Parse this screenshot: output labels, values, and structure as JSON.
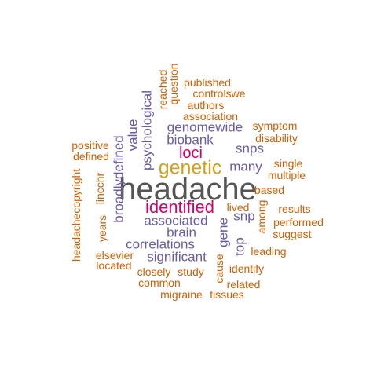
{
  "colors": {
    "gray": "#555555",
    "gold": "#d4a017",
    "magenta": "#d6006e",
    "purple": "#6a5aa8",
    "orange": "#d55e00"
  },
  "words": [
    {
      "text": "headache",
      "color": "gray"
    },
    {
      "text": "genetic",
      "color": "gold"
    },
    {
      "text": "identified",
      "color": "magenta"
    },
    {
      "text": "loci",
      "color": "magenta"
    },
    {
      "text": "associated",
      "color": "purple"
    },
    {
      "text": "brain",
      "color": "purple"
    },
    {
      "text": "correlations",
      "color": "purple"
    },
    {
      "text": "significant",
      "color": "purple"
    },
    {
      "text": "many",
      "color": "purple"
    },
    {
      "text": "snps",
      "color": "purple"
    },
    {
      "text": "snp",
      "color": "purple"
    },
    {
      "text": "genomewide",
      "color": "purple"
    },
    {
      "text": "biobank",
      "color": "purple"
    },
    {
      "text": "psychological",
      "color": "purple"
    },
    {
      "text": "value",
      "color": "purple"
    },
    {
      "text": "broadlydefined",
      "color": "purple"
    },
    {
      "text": "gene",
      "color": "purple"
    },
    {
      "text": "top",
      "color": "purple"
    },
    {
      "text": "published",
      "color": "orange"
    },
    {
      "text": "reached",
      "color": "orange"
    },
    {
      "text": "question",
      "color": "orange"
    },
    {
      "text": "controlswe",
      "color": "orange"
    },
    {
      "text": "authors",
      "color": "orange"
    },
    {
      "text": "association",
      "color": "orange"
    },
    {
      "text": "symptom",
      "color": "orange"
    },
    {
      "text": "disability",
      "color": "orange"
    },
    {
      "text": "positive",
      "color": "orange"
    },
    {
      "text": "defined",
      "color": "orange"
    },
    {
      "text": "single",
      "color": "orange"
    },
    {
      "text": "multiple",
      "color": "orange"
    },
    {
      "text": "lincchr",
      "color": "orange"
    },
    {
      "text": "based",
      "color": "orange"
    },
    {
      "text": "lived",
      "color": "orange"
    },
    {
      "text": "results",
      "color": "orange"
    },
    {
      "text": "among",
      "color": "orange"
    },
    {
      "text": "performed",
      "color": "orange"
    },
    {
      "text": "suggest",
      "color": "orange"
    },
    {
      "text": "headachecopyright",
      "color": "orange"
    },
    {
      "text": "years",
      "color": "orange"
    },
    {
      "text": "elsevier",
      "color": "orange"
    },
    {
      "text": "located",
      "color": "orange"
    },
    {
      "text": "leading",
      "color": "orange"
    },
    {
      "text": "cause",
      "color": "orange"
    },
    {
      "text": "identify",
      "color": "orange"
    },
    {
      "text": "closely",
      "color": "orange"
    },
    {
      "text": "study",
      "color": "orange"
    },
    {
      "text": "common",
      "color": "orange"
    },
    {
      "text": "related",
      "color": "orange"
    },
    {
      "text": "migraine",
      "color": "orange"
    },
    {
      "text": "tissues",
      "color": "orange"
    }
  ]
}
